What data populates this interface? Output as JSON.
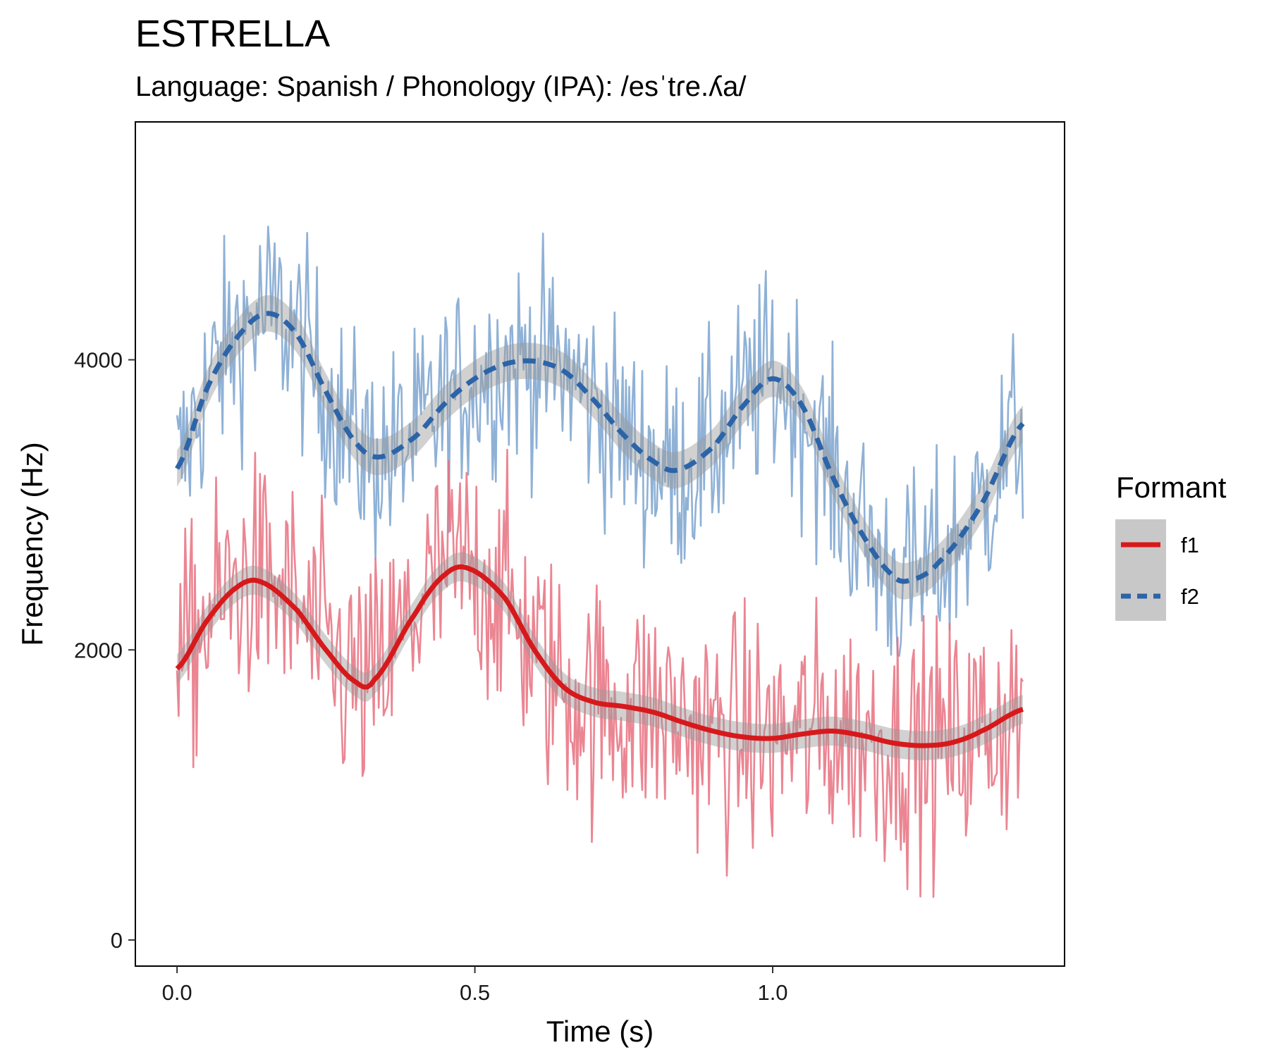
{
  "chart_data": {
    "type": "line",
    "title": "ESTRELLA",
    "subtitle": "Language: Spanish / Phonology (IPA): /esˈtɾe.ʎa/",
    "xlabel": "Time (s)",
    "ylabel": "Frequency (Hz)",
    "xlim": [
      -0.07,
      1.49
    ],
    "ylim": [
      -180,
      5640
    ],
    "x_ticks": [
      0.0,
      0.5,
      1.0
    ],
    "x_tick_labels": [
      "0.0",
      "0.5",
      "1.0"
    ],
    "y_ticks": [
      0,
      2000,
      4000
    ],
    "y_tick_labels": [
      "0",
      "2000",
      "4000"
    ],
    "grid": false,
    "legend": {
      "title": "Formant",
      "position": "right",
      "entries": [
        {
          "label": "f1",
          "color": "#d7191c",
          "dash": "solid"
        },
        {
          "label": "f2",
          "color": "#2c64a8",
          "dash": "dashed"
        }
      ]
    },
    "colors": {
      "f1_raw": "#e8707f",
      "f2_raw": "#7ba3cf",
      "f1_smooth": "#d7191c",
      "f2_smooth": "#2c64a8",
      "ribbon": "#999999"
    },
    "raw_trace_time_range": [
      0.0,
      1.42
    ],
    "series": [
      {
        "name": "f1",
        "x": [
          0.0,
          0.05,
          0.1,
          0.14,
          0.2,
          0.25,
          0.3,
          0.33,
          0.4,
          0.45,
          0.49,
          0.55,
          0.6,
          0.65,
          0.7,
          0.75,
          0.8,
          0.85,
          0.9,
          0.95,
          1.0,
          1.05,
          1.1,
          1.15,
          1.2,
          1.25,
          1.3,
          1.35,
          1.42
        ],
        "y": [
          1870,
          2200,
          2430,
          2470,
          2280,
          2000,
          1780,
          1790,
          2250,
          2520,
          2560,
          2360,
          2000,
          1740,
          1640,
          1610,
          1570,
          1500,
          1440,
          1400,
          1390,
          1420,
          1440,
          1410,
          1360,
          1340,
          1360,
          1440,
          1590
        ],
        "ribbon_halfwidth": 100
      },
      {
        "name": "f2",
        "x": [
          0.0,
          0.05,
          0.1,
          0.15,
          0.2,
          0.25,
          0.3,
          0.34,
          0.4,
          0.45,
          0.5,
          0.55,
          0.6,
          0.65,
          0.7,
          0.75,
          0.8,
          0.84,
          0.9,
          0.95,
          1.0,
          1.05,
          1.1,
          1.15,
          1.2,
          1.23,
          1.28,
          1.35,
          1.42
        ],
        "y": [
          3250,
          3800,
          4150,
          4320,
          4180,
          3780,
          3430,
          3330,
          3470,
          3700,
          3870,
          3970,
          3990,
          3920,
          3720,
          3480,
          3300,
          3240,
          3400,
          3680,
          3870,
          3680,
          3200,
          2800,
          2520,
          2480,
          2610,
          3000,
          3560
        ],
        "ribbon_halfwidth": 125
      }
    ]
  }
}
